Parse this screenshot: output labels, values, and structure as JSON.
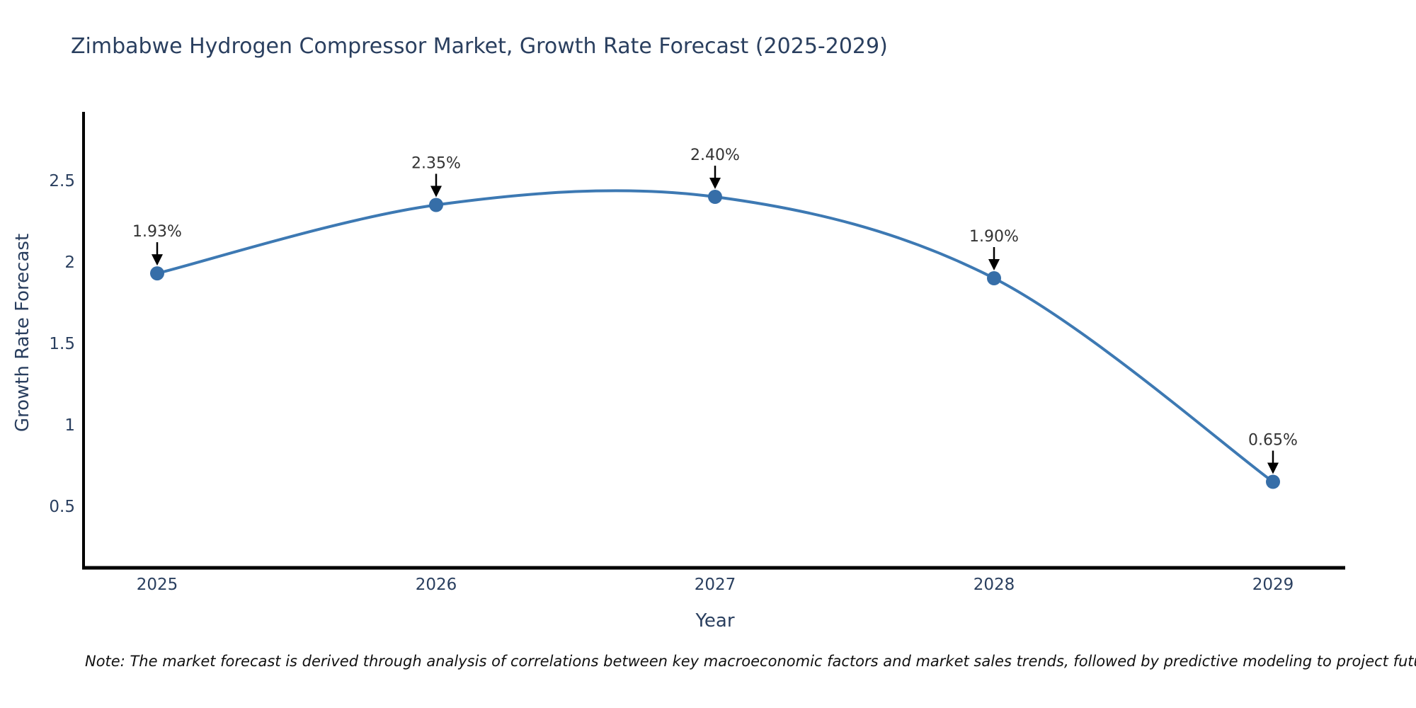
{
  "header": {
    "title": "Zimbabwe Hydrogen Compressor Market, Growth Rate Forecast (2025-2029)"
  },
  "note": {
    "text": "Note: The market forecast is derived through analysis of correlations between key macroeconomic factors and market sales trends, followed by predictive modeling to project future sales."
  },
  "chart_data": {
    "type": "line",
    "title": "Zimbabwe Hydrogen Compressor Market, Growth Rate Forecast (2025-2029)",
    "xlabel": "Year",
    "ylabel": "Growth Rate Forecast",
    "categories": [
      "2025",
      "2026",
      "2027",
      "2028",
      "2029"
    ],
    "series": [
      {
        "name": "Growth Rate Forecast",
        "values": [
          1.93,
          2.35,
          2.4,
          1.9,
          0.65
        ]
      }
    ],
    "data_labels": [
      "1.93%",
      "2.35%",
      "2.40%",
      "1.90%",
      "0.65%"
    ],
    "yticks": [
      0.5,
      1,
      1.5,
      2,
      2.5
    ],
    "ytick_labels": [
      "0.5",
      "1",
      "1.5",
      "2",
      "2.5"
    ],
    "ylim": [
      0.12,
      2.91
    ],
    "line_shape": "spline",
    "grid": false,
    "legend": "none",
    "line_color": "#3d79b3",
    "marker_color": "#366ea8",
    "arrow_color": "#000000",
    "axis_color": "#000000",
    "text_color": "#2a3f5f"
  }
}
